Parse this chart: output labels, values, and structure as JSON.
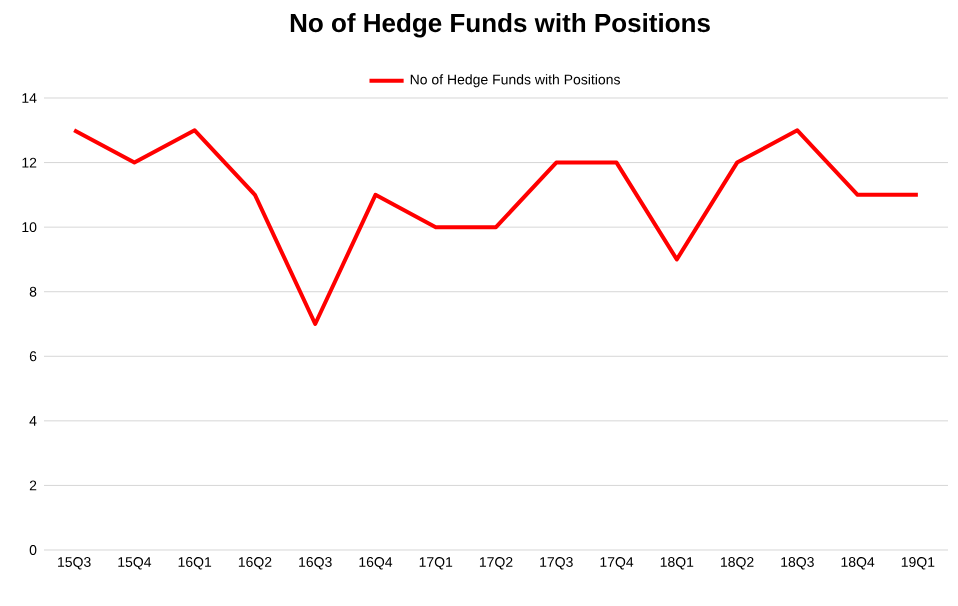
{
  "chart_data": {
    "type": "line",
    "title": "No of Hedge Funds with Positions",
    "categories": [
      "15Q3",
      "15Q4",
      "16Q1",
      "16Q2",
      "16Q3",
      "16Q4",
      "17Q1",
      "17Q2",
      "17Q3",
      "17Q4",
      "18Q1",
      "18Q2",
      "18Q3",
      "18Q4",
      "19Q1"
    ],
    "series": [
      {
        "name": "No of Hedge Funds with Positions",
        "color": "#ff0000",
        "values": [
          13,
          12,
          13,
          11,
          7,
          11,
          10,
          10,
          12,
          12,
          9,
          12,
          13,
          11,
          11
        ]
      }
    ],
    "ylim": [
      0,
      14
    ],
    "yticks": [
      0,
      2,
      4,
      6,
      8,
      10,
      12,
      14
    ],
    "grid": "y",
    "legend": "top",
    "marker": "none",
    "line_style": "solid"
  }
}
